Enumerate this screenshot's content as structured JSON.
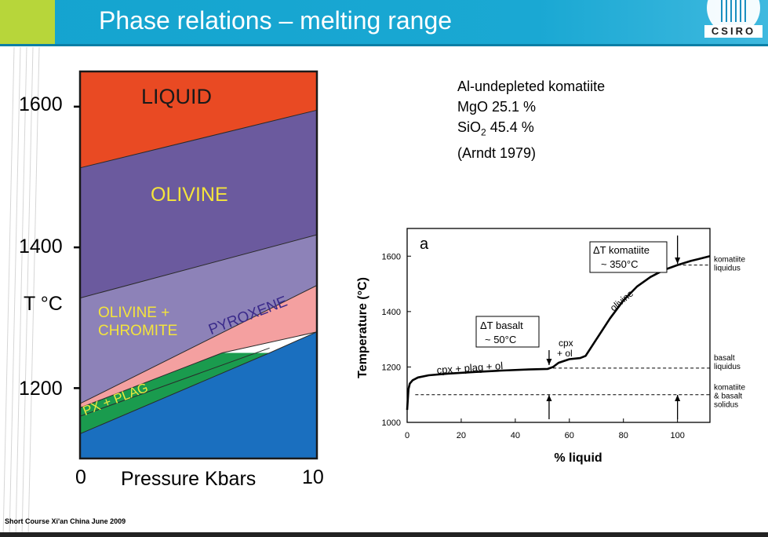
{
  "slide": {
    "title": "Phase relations – melting range",
    "logo_text": "CSIRO",
    "footer": "Short Course Xi'an China June 2009",
    "colors": {
      "header": "#1aa8d3",
      "accent": "#b7d63a"
    }
  },
  "chart_data": [
    {
      "type": "area",
      "description_source": "phase diagram (left)",
      "xlabel": "Pressure Kbars",
      "ylabel": "T °C",
      "x_ticks": [
        0,
        10
      ],
      "y_ticks": [
        1200,
        1400,
        1600
      ],
      "xlim": [
        0,
        10
      ],
      "ylim": [
        1100,
        1650
      ],
      "grid": false,
      "boundaries": [
        {
          "name": "liquidus",
          "points": [
            [
              0,
              1513
            ],
            [
              10,
              1595
            ]
          ]
        },
        {
          "name": "olivine-out",
          "points": [
            [
              0,
              1328
            ],
            [
              10,
              1418
            ]
          ]
        },
        {
          "name": "chromite-out",
          "points": [
            [
              0,
              1178
            ],
            [
              10,
              1346
            ]
          ]
        },
        {
          "name": "pyroxene-in",
          "points": [
            [
              0,
              1172
            ],
            [
              6,
              1250
            ],
            [
              10,
              1280
            ]
          ]
        },
        {
          "name": "px-plag",
          "points": [
            [
              0,
              1160
            ],
            [
              8,
              1257
            ]
          ]
        },
        {
          "name": "solidus",
          "points": [
            [
              0,
              1135
            ],
            [
              8,
              1250
            ],
            [
              10,
              1280
            ]
          ]
        }
      ],
      "regions": [
        {
          "label": "LIQUID",
          "color": "#e94a23",
          "label_color": "#1a1a1a"
        },
        {
          "label": "OLIVINE",
          "color": "#6b5a9e",
          "label_color": "#f4e43c"
        },
        {
          "label_lines": [
            "OLIVINE +",
            "CHROMITE"
          ],
          "color": "#8d82b8",
          "label_color": "#f4e43c"
        },
        {
          "label": "PYROXENE",
          "color": "#f4a0a0",
          "label_color": "#3a2a8a"
        },
        {
          "label": "PX + PLAG",
          "color": "#1a9b4e",
          "label_color": "#e8e840"
        },
        {
          "label": "",
          "color": "#1a6fbf"
        }
      ]
    },
    {
      "type": "line",
      "panel_label": "a",
      "xlabel": "% liquid",
      "ylabel": "Temperature (°C)",
      "x_ticks": [
        0,
        20,
        40,
        60,
        80,
        100
      ],
      "y_ticks": [
        1000,
        1200,
        1400,
        1600
      ],
      "xlim": [
        0,
        112
      ],
      "ylim": [
        1000,
        1700
      ],
      "grid": false,
      "series": [
        {
          "x": [
            0,
            0.5,
            1,
            2,
            4,
            8,
            15,
            25,
            35,
            45,
            52,
            54,
            56,
            60,
            64,
            66,
            70,
            75,
            80,
            85,
            90,
            95,
            100,
            105,
            112
          ],
          "y": [
            1045,
            1120,
            1140,
            1152,
            1162,
            1170,
            1176,
            1182,
            1187,
            1191,
            1193,
            1200,
            1215,
            1228,
            1232,
            1240,
            1300,
            1375,
            1440,
            1490,
            1525,
            1550,
            1568,
            1583,
            1600
          ]
        }
      ],
      "reference_lines": [
        {
          "y": 1568,
          "x_from": 100,
          "label_lines": [
            "komatiite",
            "liquidus"
          ]
        },
        {
          "y": 1196,
          "x_from": 54,
          "label_lines": [
            "basalt",
            "liquidus"
          ]
        },
        {
          "y": 1100,
          "x_from": 3,
          "label_lines": [
            "komatiite",
            "& basalt",
            "solidus"
          ]
        }
      ],
      "annotations": {
        "curve_labels": [
          "cpx + plag + ol",
          "olivine"
        ],
        "cpx_ol_lines": [
          "cpx",
          "+ ol"
        ],
        "box_basalt": [
          "ΔT basalt",
          "~ 50°C"
        ],
        "box_komatiite": [
          "ΔT komatiite",
          "~ 350°C"
        ]
      }
    }
  ],
  "info": {
    "line1": "Al-undepleted komatiite",
    "mgo": "MgO 25.1 %",
    "sio2_prefix": "SiO",
    "sio2_sub": "2",
    "sio2_value": " 45.4 %",
    "ref": "(Arndt 1979)"
  }
}
